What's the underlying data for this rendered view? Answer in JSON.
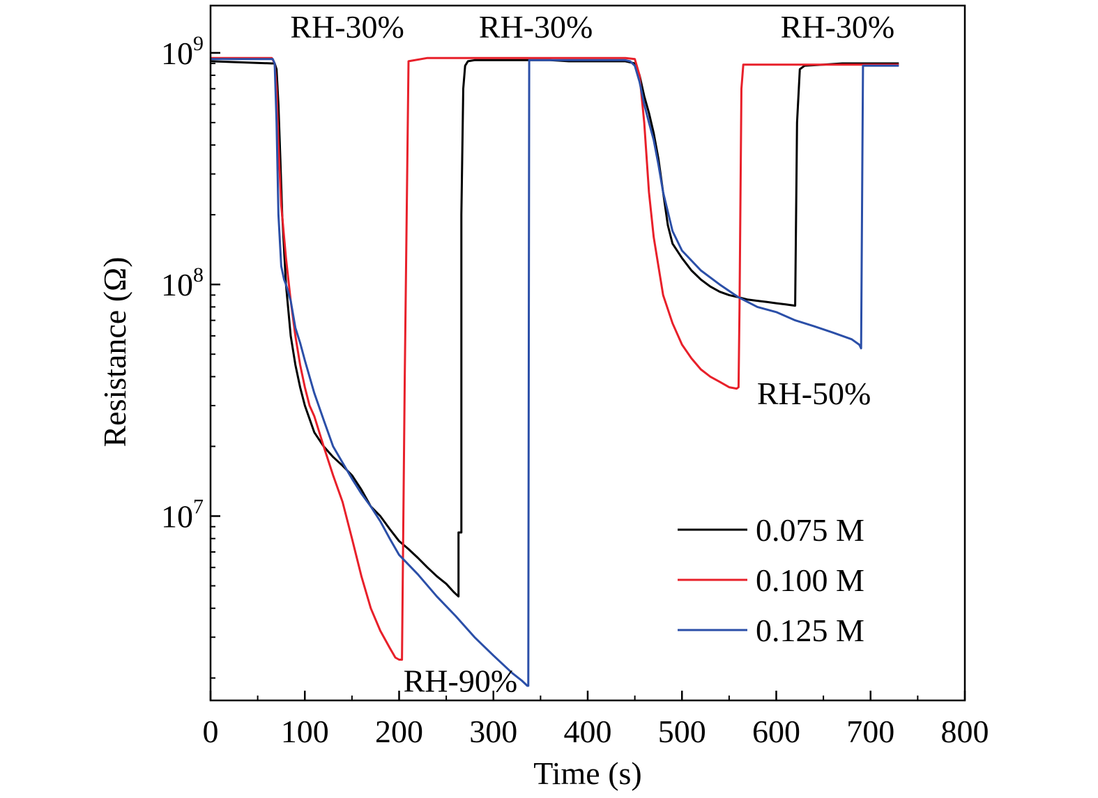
{
  "chart_data": {
    "type": "line",
    "title": "",
    "xlabel": "Time (s)",
    "ylabel": "Resistance (Ω)",
    "xlim": [
      0,
      800
    ],
    "ylim": [
      1600000.0,
      1600000000.0
    ],
    "yscale": "log",
    "grid": false,
    "legend_position": "bottom-right",
    "x_ticks": [
      0,
      100,
      200,
      300,
      400,
      500,
      600,
      700,
      800
    ],
    "y_ticks": [
      {
        "value": 10000000.0,
        "base": "10",
        "exp": "7"
      },
      {
        "value": 100000000.0,
        "base": "10",
        "exp": "8"
      },
      {
        "value": 1000000000.0,
        "base": "10",
        "exp": "9"
      }
    ],
    "annotations": [
      {
        "text": "RH-30%",
        "x": 145,
        "y": 1300000000.0
      },
      {
        "text": "RH-30%",
        "x": 345,
        "y": 1300000000.0
      },
      {
        "text": "RH-30%",
        "x": 665,
        "y": 1300000000.0
      },
      {
        "text": "RH-90%",
        "x": 265,
        "y": 1950000.0
      },
      {
        "text": "RH-50%",
        "x": 640,
        "y": 34000000.0
      }
    ],
    "series": [
      {
        "name": "0.075 M",
        "color": "#000000",
        "x": [
          0,
          65,
          68,
          70,
          72,
          74,
          76,
          80,
          85,
          90,
          95,
          100,
          110,
          120,
          130,
          140,
          150,
          160,
          170,
          180,
          190,
          200,
          210,
          220,
          230,
          240,
          250,
          258,
          263,
          263,
          266,
          266,
          268,
          270,
          273,
          280,
          300,
          320,
          340,
          360,
          380,
          400,
          420,
          440,
          450,
          455,
          460,
          465,
          470,
          475,
          480,
          485,
          490,
          500,
          510,
          520,
          530,
          540,
          550,
          560,
          570,
          580,
          590,
          600,
          610,
          620,
          622,
          625,
          630,
          650,
          670,
          690,
          710,
          730
        ],
        "y": [
          920000000.0,
          900000000.0,
          900000000.0,
          850000000.0,
          600000000.0,
          350000000.0,
          200000000.0,
          100000000.0,
          60000000.0,
          45000000.0,
          36000000.0,
          30000000.0,
          23000000.0,
          20000000.0,
          18000000.0,
          16500000.0,
          15000000.0,
          13000000.0,
          11000000.0,
          10000000.0,
          8800000.0,
          7800000.0,
          7200000.0,
          6600000.0,
          6000000.0,
          5500000.0,
          5100000.0,
          4700000.0,
          4500000.0,
          8500000.0,
          8500000.0,
          200000000.0,
          700000000.0,
          880000000.0,
          920000000.0,
          930000000.0,
          930000000.0,
          930000000.0,
          930000000.0,
          930000000.0,
          920000000.0,
          920000000.0,
          920000000.0,
          920000000.0,
          900000000.0,
          800000000.0,
          650000000.0,
          550000000.0,
          450000000.0,
          350000000.0,
          250000000.0,
          180000000.0,
          150000000.0,
          130000000.0,
          115000000.0,
          105000000.0,
          98000000.0,
          93000000.0,
          90000000.0,
          88000000.0,
          86000000.0,
          85000000.0,
          84000000.0,
          83000000.0,
          82000000.0,
          81000000.0,
          500000000.0,
          850000000.0,
          880000000.0,
          890000000.0,
          900000000.0,
          900000000.0,
          900000000.0,
          900000000.0
        ]
      },
      {
        "name": "0.100 M",
        "color": "#e8202a",
        "x": [
          0,
          20,
          40,
          60,
          65,
          68,
          70,
          72,
          75,
          80,
          85,
          90,
          95,
          100,
          105,
          110,
          120,
          130,
          140,
          150,
          160,
          170,
          180,
          190,
          196,
          200,
          203,
          206,
          210,
          230,
          260,
          290,
          320,
          350,
          380,
          410,
          440,
          450,
          455,
          460,
          465,
          470,
          480,
          490,
          500,
          510,
          520,
          530,
          540,
          550,
          558,
          560,
          561,
          563,
          565,
          570,
          600,
          630,
          660,
          690,
          710,
          730
        ],
        "y": [
          950000000.0,
          950000000.0,
          950000000.0,
          950000000.0,
          950000000.0,
          900000000.0,
          700000000.0,
          400000000.0,
          220000000.0,
          130000000.0,
          85000000.0,
          60000000.0,
          45000000.0,
          36000000.0,
          30000000.0,
          27000000.0,
          20000000.0,
          15000000.0,
          11500000.0,
          8000000.0,
          5500000.0,
          4000000.0,
          3200000.0,
          2700000.0,
          2450000.0,
          2400000.0,
          2400000.0,
          40000000.0,
          920000000.0,
          950000000.0,
          950000000.0,
          950000000.0,
          950000000.0,
          950000000.0,
          950000000.0,
          950000000.0,
          950000000.0,
          940000000.0,
          800000000.0,
          500000000.0,
          250000000.0,
          160000000.0,
          90000000.0,
          68000000.0,
          55000000.0,
          48000000.0,
          43000000.0,
          40000000.0,
          38000000.0,
          36000000.0,
          35500000.0,
          36000000.0,
          80000000.0,
          700000000.0,
          890000000.0,
          890000000.0,
          890000000.0,
          890000000.0,
          890000000.0,
          890000000.0,
          890000000.0,
          890000000.0
        ]
      },
      {
        "name": "0.125 M",
        "color": "#2b4fa8",
        "x": [
          0,
          20,
          40,
          60,
          66,
          68,
          70,
          72,
          75,
          78,
          80,
          85,
          90,
          95,
          100,
          110,
          120,
          130,
          140,
          150,
          160,
          170,
          180,
          190,
          200,
          220,
          240,
          260,
          280,
          300,
          320,
          330,
          336,
          337,
          338,
          340,
          345,
          360,
          380,
          400,
          420,
          440,
          445,
          450,
          455,
          460,
          465,
          470,
          475,
          480,
          490,
          500,
          520,
          540,
          560,
          580,
          600,
          620,
          640,
          660,
          680,
          688,
          689,
          690,
          692,
          700,
          715,
          730
        ],
        "y": [
          940000000.0,
          940000000.0,
          940000000.0,
          940000000.0,
          940000000.0,
          900000000.0,
          500000000.0,
          200000000.0,
          120000000.0,
          105000000.0,
          100000000.0,
          85000000.0,
          65000000.0,
          56000000.0,
          47000000.0,
          34000000.0,
          26000000.0,
          20000000.0,
          17000000.0,
          14500000.0,
          12500000.0,
          11000000.0,
          9500000.0,
          8000000.0,
          6800000.0,
          5600000.0,
          4500000.0,
          3700000.0,
          3000000.0,
          2500000.0,
          2100000.0,
          1950000.0,
          1850000.0,
          1850000.0,
          930000000.0,
          930000000.0,
          930000000.0,
          930000000.0,
          930000000.0,
          930000000.0,
          930000000.0,
          930000000.0,
          920000000.0,
          880000000.0,
          750000000.0,
          600000000.0,
          500000000.0,
          420000000.0,
          330000000.0,
          250000000.0,
          170000000.0,
          140000000.0,
          115000000.0,
          100000000.0,
          88000000.0,
          80000000.0,
          76000000.0,
          70000000.0,
          66000000.0,
          62000000.0,
          58000000.0,
          55000000.0,
          54000000.0,
          53000000.0,
          880000000.0,
          880000000.0,
          880000000.0,
          880000000.0
        ]
      }
    ]
  }
}
